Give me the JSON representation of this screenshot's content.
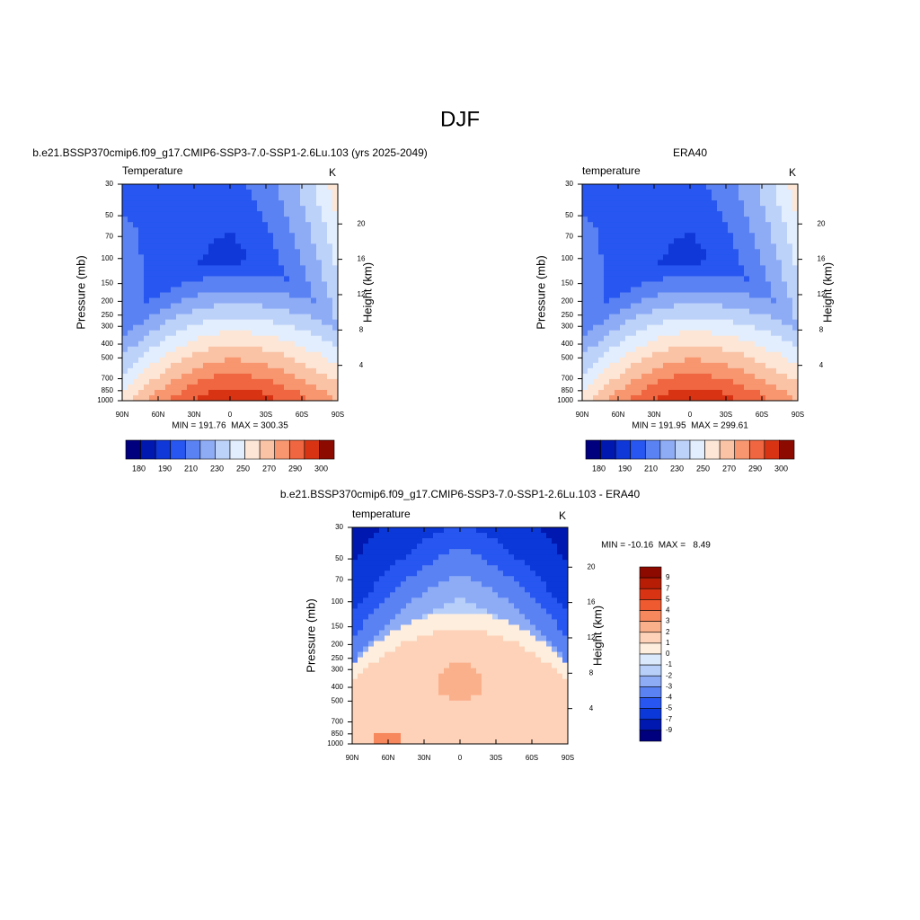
{
  "figure_title": "DJF",
  "chart_data": [
    {
      "type": "contour",
      "title": "b.e21.BSSP370cmip6.f09_g17.CMIP6-SSP3-7.0-SSP1-2.6Lu.103 (yrs 2025-2049)",
      "subtitle": "Temperature",
      "units": "K",
      "ylabel": "Pressure (mb)",
      "y2label": "Height (km)",
      "xlim": [
        90,
        -90
      ],
      "xticks": [
        {
          "value": 90,
          "label": "90N"
        },
        {
          "value": 60,
          "label": "60N"
        },
        {
          "value": 30,
          "label": "30N"
        },
        0,
        {
          "value": -30,
          "label": "30S"
        },
        {
          "value": -60,
          "label": "60S"
        },
        {
          "value": -90,
          "label": "90S"
        }
      ],
      "ylim": [
        1000,
        30
      ],
      "ylog": true,
      "yticks": [
        30,
        50,
        70,
        100,
        150,
        200,
        250,
        300,
        400,
        500,
        700,
        850,
        1000
      ],
      "y2lim": [
        0,
        24.5
      ],
      "y2ticks": [
        4,
        8,
        12,
        16,
        20
      ],
      "stats": "MIN = 191.76  MAX = 300.35",
      "colorbar": {
        "orientation": "horizontal",
        "colors": [
          "#00007f",
          "#0018b0",
          "#1038d8",
          "#2756f0",
          "#5a82f3",
          "#8eacf6",
          "#bdd2f9",
          "#e2eefd",
          "#fde6d6",
          "#fbc3a6",
          "#f7966f",
          "#ef6640",
          "#d83414",
          "#8c0a00"
        ],
        "labels": [
          180,
          190,
          210,
          230,
          250,
          270,
          290,
          300
        ]
      }
    },
    {
      "type": "contour",
      "title": "ERA40",
      "subtitle": "temperature",
      "units": "K",
      "ylabel": "Pressure (mb)",
      "y2label": "Height (km)",
      "xlim": [
        90,
        -90
      ],
      "xticks": [
        {
          "value": 90,
          "label": "90N"
        },
        {
          "value": 60,
          "label": "60N"
        },
        {
          "value": 30,
          "label": "30N"
        },
        0,
        {
          "value": -30,
          "label": "30S"
        },
        {
          "value": -60,
          "label": "60S"
        },
        {
          "value": -90,
          "label": "90S"
        }
      ],
      "ylim": [
        1000,
        30
      ],
      "ylog": true,
      "yticks": [
        30,
        50,
        70,
        100,
        150,
        200,
        250,
        300,
        400,
        500,
        700,
        850,
        1000
      ],
      "y2lim": [
        0,
        24.5
      ],
      "y2ticks": [
        4,
        8,
        12,
        16,
        20
      ],
      "stats": "MIN = 191.95  MAX = 299.61",
      "colorbar": {
        "orientation": "horizontal",
        "colors": [
          "#00007f",
          "#0018b0",
          "#1038d8",
          "#2756f0",
          "#5a82f3",
          "#8eacf6",
          "#bdd2f9",
          "#e2eefd",
          "#fde6d6",
          "#fbc3a6",
          "#f7966f",
          "#ef6640",
          "#d83414",
          "#8c0a00"
        ],
        "labels": [
          180,
          190,
          210,
          230,
          250,
          270,
          290,
          300
        ]
      }
    },
    {
      "type": "contour",
      "title": "b.e21.BSSP370cmip6.f09_g17.CMIP6-SSP3-7.0-SSP1-2.6Lu.103 - ERA40",
      "subtitle": "temperature",
      "units": "K",
      "ylabel": "Pressure (mb)",
      "y2label": "Height (km)",
      "xlim": [
        90,
        -90
      ],
      "xticks": [
        {
          "value": 90,
          "label": "90N"
        },
        {
          "value": 60,
          "label": "60N"
        },
        {
          "value": 30,
          "label": "30N"
        },
        0,
        {
          "value": -30,
          "label": "30S"
        },
        {
          "value": -60,
          "label": "60S"
        },
        {
          "value": -90,
          "label": "90S"
        }
      ],
      "ylim": [
        1000,
        30
      ],
      "ylog": true,
      "yticks": [
        30,
        50,
        70,
        100,
        150,
        200,
        250,
        300,
        400,
        500,
        700,
        850,
        1000
      ],
      "y2lim": [
        0,
        24.5
      ],
      "y2ticks": [
        4,
        8,
        12,
        16,
        20
      ],
      "stats": "MIN = -10.16  MAX =   8.49",
      "colorbar": {
        "orientation": "vertical",
        "colors": [
          "#8c0a00",
          "#b71c05",
          "#d83414",
          "#ef5a30",
          "#f7875c",
          "#fbb08c",
          "#fdd2b8",
          "#feeede",
          "#dbe9fc",
          "#b7cff9",
          "#8eacf6",
          "#5a82f3",
          "#2756f0",
          "#0b38d8",
          "#0018b0",
          "#00007f"
        ],
        "labels": [
          9,
          7,
          5,
          4,
          3,
          2,
          1,
          0,
          -1,
          -2,
          -3,
          -4,
          -5,
          -7,
          -9
        ]
      }
    }
  ]
}
